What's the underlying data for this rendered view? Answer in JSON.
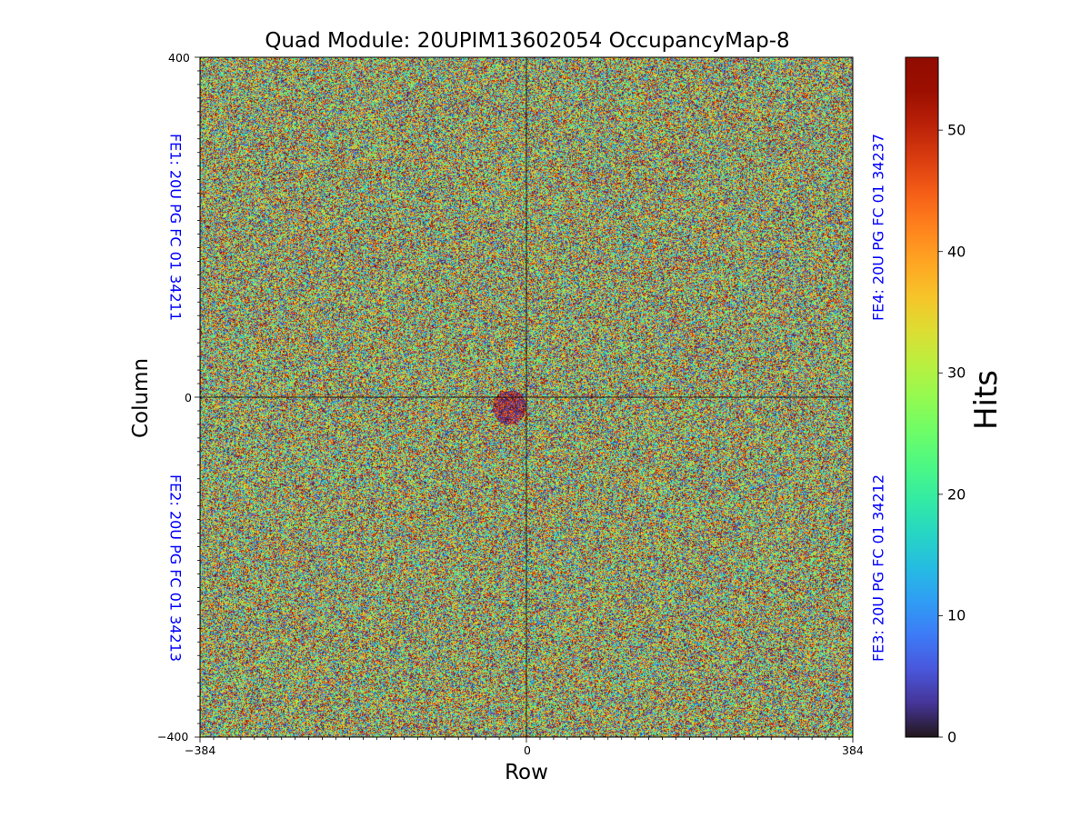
{
  "chart_data": {
    "type": "heatmap",
    "title": "Quad Module: 20UPIM13602054 OccupancyMap-8",
    "xlabel": "Row",
    "ylabel": "Column",
    "xlim": [
      -384,
      384
    ],
    "ylim": [
      -400,
      400
    ],
    "x_ticks": [
      "−384",
      "0",
      "384"
    ],
    "y_ticks": [
      "400",
      "0",
      "−400"
    ],
    "colorbar": {
      "label": "Hits",
      "min": 0,
      "max": 56,
      "ticks": [
        0,
        10,
        20,
        30,
        40,
        50
      ],
      "colormap": "turbo"
    },
    "front_ends": [
      {
        "name": "FE1: 20U PG FC 01 34211",
        "quadrant": "top-left",
        "color": "#0000ff"
      },
      {
        "name": "FE2: 20U PG FC 01 34213",
        "quadrant": "bottom-left",
        "color": "#0000ff"
      },
      {
        "name": "FE3: 20U PG FC 01 34212",
        "quadrant": "bottom-right",
        "color": "#0000ff"
      },
      {
        "name": "FE4: 20U PG FC 01 34237",
        "quadrant": "top-right",
        "color": "#0000ff"
      }
    ],
    "occupancy_distribution": "noise, approximately uniform 0-56 hits per pixel",
    "low_occupancy_spot": {
      "x_center": -20,
      "y_center": -12,
      "radius": 20
    }
  }
}
